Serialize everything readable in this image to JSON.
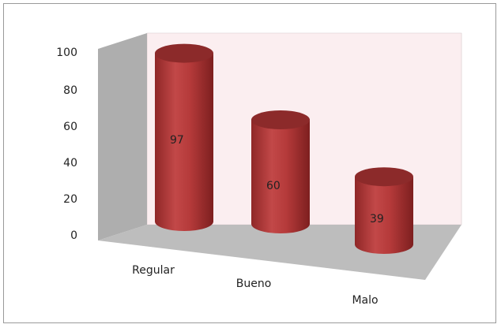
{
  "chart_data": {
    "type": "bar",
    "style": "3d-cylinder",
    "title": "",
    "xlabel": "",
    "ylabel": "",
    "categories": [
      "Regular",
      "Bueno",
      "Malo"
    ],
    "values": [
      97,
      60,
      39
    ],
    "data_labels": [
      "97",
      "60",
      "39"
    ],
    "y_ticks": [
      "0",
      "20",
      "40",
      "60",
      "80",
      "100"
    ],
    "ylim": [
      0,
      100
    ],
    "grid": false,
    "legend": "none",
    "colors": {
      "bar": "#b53a3a",
      "bar_top": "#8c2a2a",
      "back_wall": "#fbeef0",
      "side_wall": "#aeaeae",
      "floor": "#bdbdbd"
    }
  }
}
